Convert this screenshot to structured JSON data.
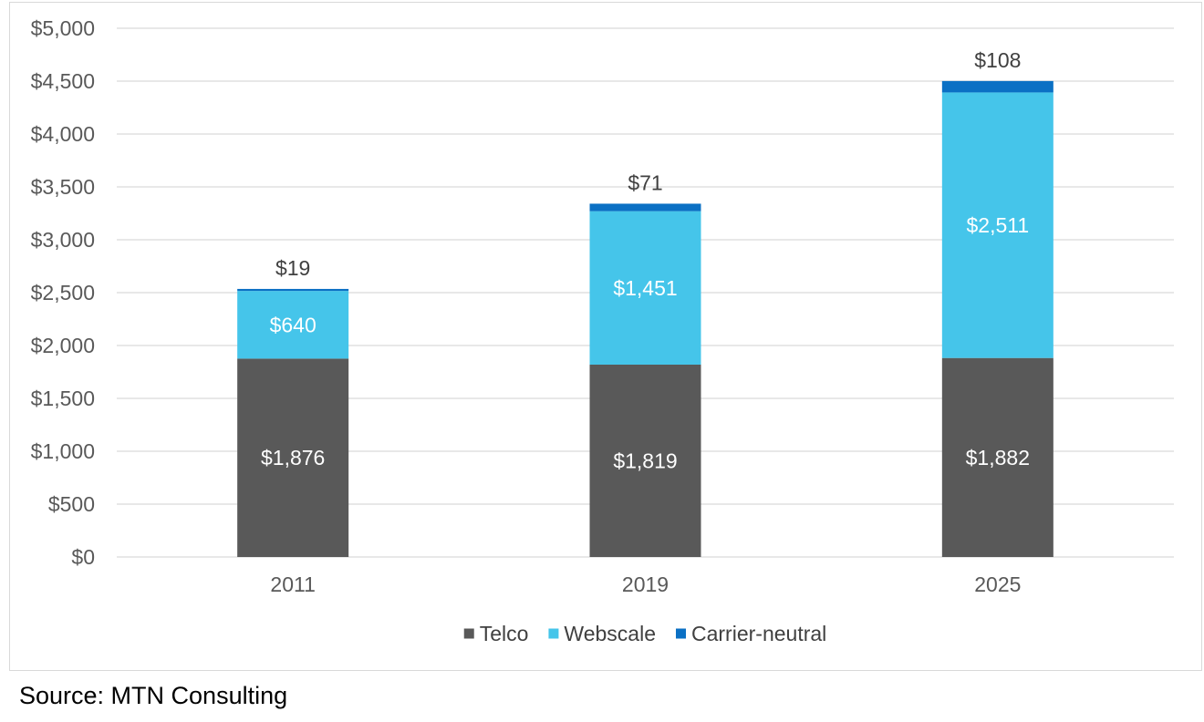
{
  "chart_data": {
    "type": "bar",
    "stacked": true,
    "categories": [
      "2011",
      "2019",
      "2025"
    ],
    "series": [
      {
        "name": "Telco",
        "values": [
          1876,
          1819,
          1882
        ],
        "color": "#595959",
        "label_color": "#ffffff",
        "labels": [
          "$1,876",
          "$1,819",
          "$1,882"
        ]
      },
      {
        "name": "Webscale",
        "values": [
          640,
          1451,
          2511
        ],
        "color": "#45c5ea",
        "label_color": "#ffffff",
        "labels": [
          "$640",
          "$1,451",
          "$2,511"
        ]
      },
      {
        "name": "Carrier-neutral",
        "values": [
          19,
          71,
          108
        ],
        "color": "#0b70c4",
        "label_color": "#404040",
        "labels": [
          "$19",
          "$71",
          "$108"
        ]
      }
    ],
    "ylim": [
      0,
      5000
    ],
    "yticks": [
      0,
      500,
      1000,
      1500,
      2000,
      2500,
      3000,
      3500,
      4000,
      4500,
      5000
    ],
    "ytick_labels": [
      "$0",
      "$500",
      "$1,000",
      "$1,500",
      "$2,000",
      "$2,500",
      "$3,000",
      "$3,500",
      "$4,000",
      "$4,500",
      "$5,000"
    ],
    "grid": true,
    "legend_position": "bottom",
    "title": "",
    "xlabel": "",
    "ylabel": ""
  },
  "source_note": "Source: MTN Consulting"
}
